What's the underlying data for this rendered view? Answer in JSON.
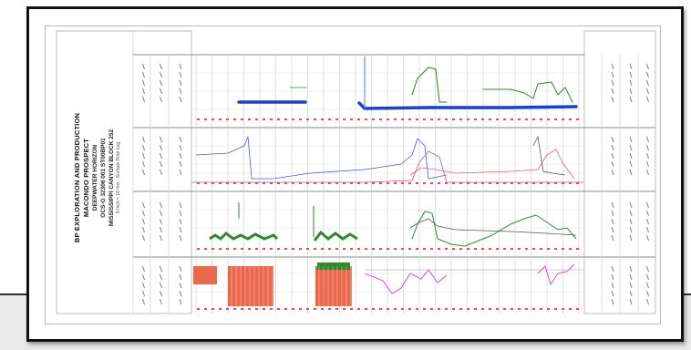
{
  "document": {
    "title_lines": [
      "BP EXPLORATION AND PRODUCTION",
      "MACONDO PROSPECT",
      "DEEPWATER HORIZON",
      "OCS-G 32306 001 ST00BP01",
      "MISSISSIPPI CANYON BLOCK 252"
    ],
    "scale_line": "5 Inch = 10 min - Surface Time Log"
  },
  "colors": {
    "frame": "#111111",
    "grid": "#c7c7c7",
    "blue_trace": "#1b3fd6",
    "green_trace": "#2f8a2f",
    "red_fill": "#e85a3c",
    "magenta_trace": "#d23bd2",
    "shade": "#e9e9e9"
  }
}
